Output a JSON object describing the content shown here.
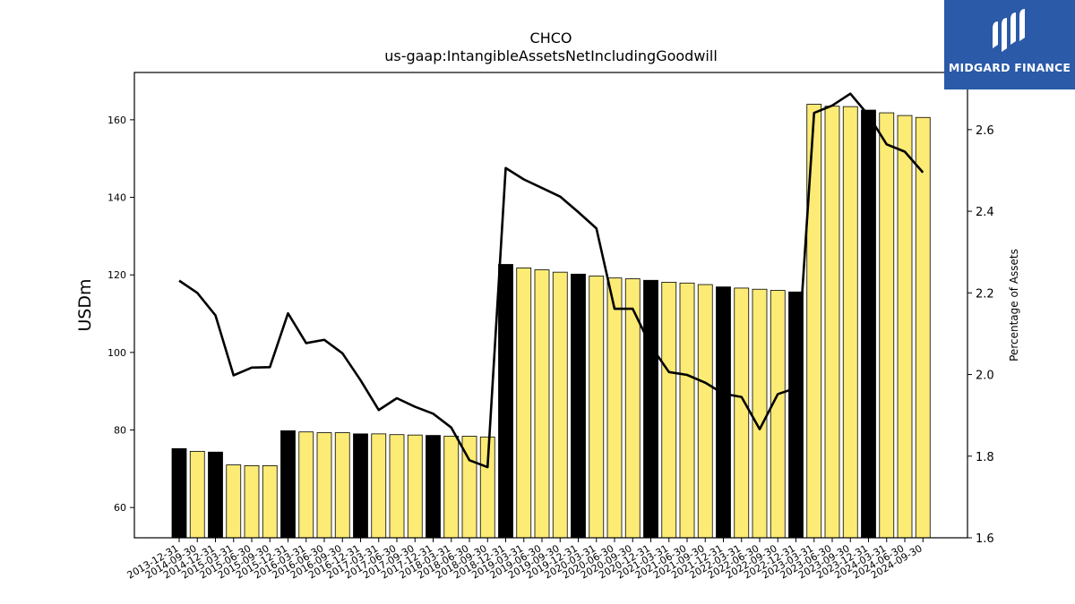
{
  "chart_data": {
    "type": "bar+line",
    "title": "CHCO",
    "subtitle": "us-gaap:IntangibleAssetsNetIncludingGoodwill",
    "ylabel_left": "USDm",
    "ylabel_right": "Percentage of Assets",
    "ylim_left": [
      52.2,
      172.2
    ],
    "ylim_right": [
      1.6,
      2.74
    ],
    "yticks_left": [
      60,
      80,
      100,
      120,
      140,
      160
    ],
    "yticks_right": [
      1.6,
      1.8,
      2.0,
      2.2,
      2.4,
      2.6
    ],
    "categories": [
      "2013-12-31",
      "2014-09-30",
      "2014-12-31",
      "2015-03-31",
      "2015-06-30",
      "2015-09-30",
      "2015-12-31",
      "2016-03-31",
      "2016-06-30",
      "2016-09-30",
      "2016-12-31",
      "2017-03-31",
      "2017-06-30",
      "2017-09-30",
      "2017-12-31",
      "2018-03-31",
      "2018-06-30",
      "2018-09-30",
      "2018-12-31",
      "2019-03-31",
      "2019-06-30",
      "2019-09-30",
      "2019-12-31",
      "2020-03-31",
      "2020-06-30",
      "2020-09-30",
      "2020-12-31",
      "2021-03-31",
      "2021-06-30",
      "2021-09-30",
      "2021-12-31",
      "2022-03-31",
      "2022-06-30",
      "2022-09-30",
      "2022-12-31",
      "2023-03-31",
      "2023-06-30",
      "2023-09-30",
      "2023-12-31",
      "2024-03-31",
      "2024-06-30",
      "2024-09-30"
    ],
    "series": [
      {
        "type": "bar",
        "values": [
          75.2,
          74.5,
          74.3,
          71.0,
          70.8,
          70.8,
          79.8,
          79.5,
          79.3,
          79.3,
          79.0,
          79.0,
          78.8,
          78.7,
          78.6,
          78.4,
          78.4,
          78.2,
          122.7,
          121.8,
          121.3,
          120.7,
          120.2,
          119.7,
          119.2,
          119.0,
          118.6,
          118.1,
          117.9,
          117.5,
          116.9,
          116.6,
          116.3,
          116.0,
          115.6,
          164.0,
          163.5,
          163.4,
          162.5,
          161.8,
          161.1,
          160.6
        ]
      },
      {
        "type": "line",
        "values": [
          2.23,
          2.2,
          2.145,
          1.998,
          2.017,
          2.018,
          2.15,
          2.077,
          2.085,
          2.052,
          1.986,
          1.913,
          1.942,
          1.921,
          1.904,
          1.87,
          1.79,
          1.773,
          2.506,
          2.478,
          2.457,
          2.436,
          2.398,
          2.358,
          2.161,
          2.161,
          2.07,
          2.006,
          1.999,
          1.98,
          1.953,
          1.945,
          1.866,
          1.952,
          1.967,
          2.641,
          2.659,
          2.688,
          2.635,
          2.564,
          2.546,
          2.495
        ]
      }
    ],
    "bar_highlight": [
      true,
      false,
      true,
      false,
      false,
      false,
      true,
      false,
      false,
      false,
      true,
      false,
      false,
      false,
      true,
      false,
      false,
      false,
      true,
      false,
      false,
      false,
      true,
      false,
      false,
      false,
      true,
      false,
      false,
      false,
      true,
      false,
      false,
      false,
      true,
      false,
      false,
      false,
      true,
      false,
      false,
      false
    ],
    "colors": {
      "bar": "#fceb75",
      "bar_highlight": "#000000",
      "line": "#000000",
      "edge": "#000000"
    },
    "grid": false,
    "legend": "none"
  },
  "logo": {
    "text": "MIDGARD FINANCE",
    "color": "#2a5aa8"
  }
}
